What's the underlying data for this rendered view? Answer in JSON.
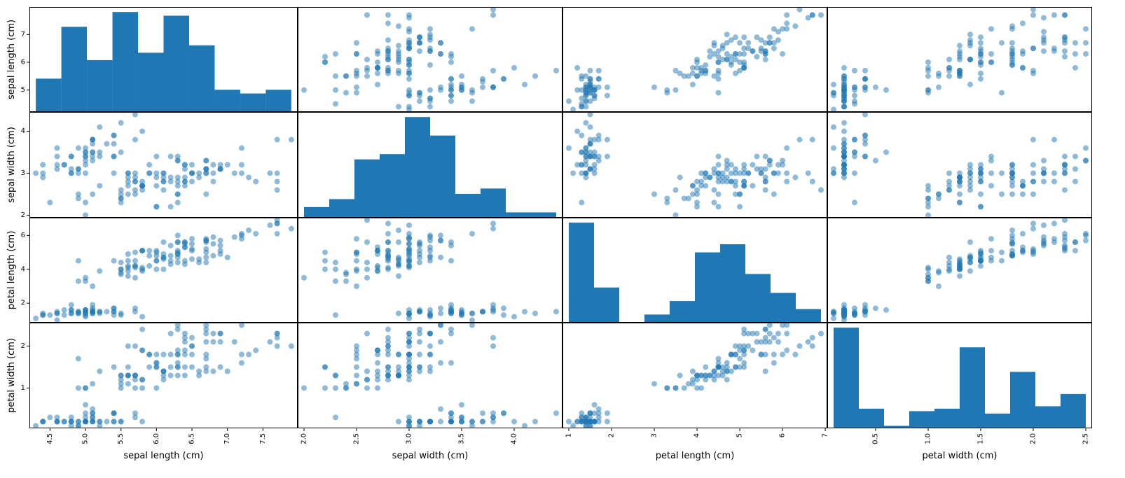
{
  "chart_data": {
    "type": "scatter-matrix",
    "variables": [
      "sepal length (cm)",
      "sepal width (cm)",
      "petal length (cm)",
      "petal width (cm)"
    ],
    "ranges": [
      [
        4.3,
        7.9
      ],
      [
        2.0,
        4.4
      ],
      [
        1.0,
        6.9
      ],
      [
        0.1,
        2.5
      ]
    ],
    "x_ticks": [
      [
        "4.5",
        "5.0",
        "5.5",
        "6.0",
        "6.5",
        "7.0",
        "7.5"
      ],
      [
        "2.0",
        "2.5",
        "3.0",
        "3.5",
        "4.0"
      ],
      [
        "1",
        "2",
        "3",
        "4",
        "5",
        "6",
        "7"
      ],
      [
        "0.5",
        "1.0",
        "1.5",
        "2.0",
        "2.5"
      ]
    ],
    "y_ticks": [
      [
        "5",
        "6",
        "7"
      ],
      [
        "2",
        "3",
        "4"
      ],
      [
        "2",
        "4",
        "6"
      ],
      [
        "1",
        "2"
      ]
    ],
    "histograms": [
      {
        "variable": "sepal length (cm)",
        "counts": [
          9,
          23,
          14,
          27,
          16,
          26,
          18,
          6,
          5,
          6
        ]
      },
      {
        "variable": "sepal width (cm)",
        "counts": [
          4,
          7,
          22,
          24,
          38,
          31,
          9,
          11,
          2,
          2
        ]
      },
      {
        "variable": "petal length (cm)",
        "counts": [
          37,
          13,
          0,
          3,
          8,
          26,
          29,
          18,
          11,
          5
        ]
      },
      {
        "variable": "petal width (cm)",
        "counts": [
          41,
          8,
          1,
          7,
          8,
          33,
          6,
          23,
          9,
          14
        ]
      }
    ],
    "marker_color": "#1f77b4",
    "marker_alpha": 0.5,
    "bar_color": "#1f77b4",
    "samples": [
      [
        5.1,
        3.5,
        1.4,
        0.2
      ],
      [
        4.9,
        3.0,
        1.4,
        0.2
      ],
      [
        4.7,
        3.2,
        1.3,
        0.2
      ],
      [
        4.6,
        3.1,
        1.5,
        0.2
      ],
      [
        5.0,
        3.6,
        1.4,
        0.2
      ],
      [
        5.4,
        3.9,
        1.7,
        0.4
      ],
      [
        4.6,
        3.4,
        1.4,
        0.3
      ],
      [
        5.0,
        3.4,
        1.5,
        0.2
      ],
      [
        4.4,
        2.9,
        1.4,
        0.2
      ],
      [
        4.9,
        3.1,
        1.5,
        0.1
      ],
      [
        5.4,
        3.7,
        1.5,
        0.2
      ],
      [
        4.8,
        3.4,
        1.6,
        0.2
      ],
      [
        4.8,
        3.0,
        1.4,
        0.1
      ],
      [
        4.3,
        3.0,
        1.1,
        0.1
      ],
      [
        5.8,
        4.0,
        1.2,
        0.2
      ],
      [
        5.7,
        4.4,
        1.5,
        0.4
      ],
      [
        5.4,
        3.9,
        1.3,
        0.4
      ],
      [
        5.1,
        3.5,
        1.4,
        0.3
      ],
      [
        5.7,
        3.8,
        1.7,
        0.3
      ],
      [
        5.1,
        3.8,
        1.5,
        0.3
      ],
      [
        5.4,
        3.4,
        1.7,
        0.2
      ],
      [
        5.1,
        3.7,
        1.5,
        0.4
      ],
      [
        4.6,
        3.6,
        1.0,
        0.2
      ],
      [
        5.1,
        3.3,
        1.7,
        0.5
      ],
      [
        4.8,
        3.4,
        1.9,
        0.2
      ],
      [
        5.0,
        3.0,
        1.6,
        0.2
      ],
      [
        5.0,
        3.4,
        1.6,
        0.4
      ],
      [
        5.2,
        3.5,
        1.5,
        0.2
      ],
      [
        5.2,
        3.4,
        1.4,
        0.2
      ],
      [
        4.7,
        3.2,
        1.6,
        0.2
      ],
      [
        4.8,
        3.1,
        1.6,
        0.2
      ],
      [
        5.4,
        3.4,
        1.5,
        0.4
      ],
      [
        5.2,
        4.1,
        1.5,
        0.1
      ],
      [
        5.5,
        4.2,
        1.4,
        0.2
      ],
      [
        4.9,
        3.1,
        1.5,
        0.2
      ],
      [
        5.0,
        3.2,
        1.2,
        0.2
      ],
      [
        5.5,
        3.5,
        1.3,
        0.2
      ],
      [
        4.9,
        3.6,
        1.4,
        0.1
      ],
      [
        4.4,
        3.0,
        1.3,
        0.2
      ],
      [
        5.1,
        3.4,
        1.5,
        0.2
      ],
      [
        5.0,
        3.5,
        1.3,
        0.3
      ],
      [
        4.5,
        2.3,
        1.3,
        0.3
      ],
      [
        4.4,
        3.2,
        1.3,
        0.2
      ],
      [
        5.0,
        3.5,
        1.6,
        0.6
      ],
      [
        5.1,
        3.8,
        1.9,
        0.4
      ],
      [
        4.8,
        3.0,
        1.4,
        0.3
      ],
      [
        5.1,
        3.8,
        1.6,
        0.2
      ],
      [
        4.6,
        3.2,
        1.4,
        0.2
      ],
      [
        5.3,
        3.7,
        1.5,
        0.2
      ],
      [
        5.0,
        3.3,
        1.4,
        0.2
      ],
      [
        7.0,
        3.2,
        4.7,
        1.4
      ],
      [
        6.4,
        3.2,
        4.5,
        1.5
      ],
      [
        6.9,
        3.1,
        4.9,
        1.5
      ],
      [
        5.5,
        2.3,
        4.0,
        1.3
      ],
      [
        6.5,
        2.8,
        4.6,
        1.5
      ],
      [
        5.7,
        2.8,
        4.5,
        1.3
      ],
      [
        6.3,
        3.3,
        4.7,
        1.6
      ],
      [
        4.9,
        2.4,
        3.3,
        1.0
      ],
      [
        6.6,
        2.9,
        4.6,
        1.3
      ],
      [
        5.2,
        2.7,
        3.9,
        1.4
      ],
      [
        5.0,
        2.0,
        3.5,
        1.0
      ],
      [
        5.9,
        3.0,
        4.2,
        1.5
      ],
      [
        6.0,
        2.2,
        4.0,
        1.0
      ],
      [
        6.1,
        2.9,
        4.7,
        1.4
      ],
      [
        5.6,
        2.9,
        3.6,
        1.3
      ],
      [
        6.7,
        3.1,
        4.4,
        1.4
      ],
      [
        5.6,
        3.0,
        4.5,
        1.5
      ],
      [
        5.8,
        2.7,
        4.1,
        1.0
      ],
      [
        6.2,
        2.2,
        4.5,
        1.5
      ],
      [
        5.6,
        2.5,
        3.9,
        1.1
      ],
      [
        5.9,
        3.2,
        4.8,
        1.8
      ],
      [
        6.1,
        2.8,
        4.0,
        1.3
      ],
      [
        6.3,
        2.5,
        4.9,
        1.5
      ],
      [
        6.1,
        2.8,
        4.7,
        1.2
      ],
      [
        6.4,
        2.9,
        4.3,
        1.3
      ],
      [
        6.6,
        3.0,
        4.4,
        1.4
      ],
      [
        6.8,
        2.8,
        4.8,
        1.4
      ],
      [
        6.7,
        3.0,
        5.0,
        1.7
      ],
      [
        6.0,
        2.9,
        4.5,
        1.5
      ],
      [
        5.7,
        2.6,
        3.5,
        1.0
      ],
      [
        5.5,
        2.4,
        3.8,
        1.1
      ],
      [
        5.5,
        2.4,
        3.7,
        1.0
      ],
      [
        5.8,
        2.7,
        3.9,
        1.2
      ],
      [
        6.0,
        2.7,
        5.1,
        1.6
      ],
      [
        5.4,
        3.0,
        4.5,
        1.5
      ],
      [
        6.0,
        3.4,
        4.5,
        1.6
      ],
      [
        6.7,
        3.1,
        4.7,
        1.5
      ],
      [
        6.3,
        2.3,
        4.4,
        1.3
      ],
      [
        5.6,
        3.0,
        4.1,
        1.3
      ],
      [
        5.5,
        2.5,
        4.0,
        1.3
      ],
      [
        5.5,
        2.6,
        4.4,
        1.2
      ],
      [
        6.1,
        3.0,
        4.6,
        1.4
      ],
      [
        5.8,
        2.6,
        4.0,
        1.2
      ],
      [
        5.0,
        2.3,
        3.3,
        1.0
      ],
      [
        5.6,
        2.7,
        4.2,
        1.3
      ],
      [
        5.7,
        3.0,
        4.2,
        1.2
      ],
      [
        5.7,
        2.9,
        4.2,
        1.3
      ],
      [
        6.2,
        2.9,
        4.3,
        1.3
      ],
      [
        5.1,
        2.5,
        3.0,
        1.1
      ],
      [
        5.7,
        2.8,
        4.1,
        1.3
      ],
      [
        6.3,
        3.3,
        6.0,
        2.5
      ],
      [
        5.8,
        2.7,
        5.1,
        1.9
      ],
      [
        7.1,
        3.0,
        5.9,
        2.1
      ],
      [
        6.3,
        2.9,
        5.6,
        1.8
      ],
      [
        6.5,
        3.0,
        5.8,
        2.2
      ],
      [
        7.6,
        3.0,
        6.6,
        2.1
      ],
      [
        4.9,
        2.5,
        4.5,
        1.7
      ],
      [
        7.3,
        2.9,
        6.3,
        1.8
      ],
      [
        6.7,
        2.5,
        5.8,
        1.8
      ],
      [
        7.2,
        3.6,
        6.1,
        2.5
      ],
      [
        6.5,
        3.2,
        5.1,
        2.0
      ],
      [
        6.4,
        2.7,
        5.3,
        1.9
      ],
      [
        6.8,
        3.0,
        5.5,
        2.1
      ],
      [
        5.7,
        2.5,
        5.0,
        2.0
      ],
      [
        5.8,
        2.8,
        5.1,
        2.4
      ],
      [
        6.4,
        3.2,
        5.3,
        2.3
      ],
      [
        6.5,
        3.0,
        5.5,
        1.8
      ],
      [
        7.7,
        3.8,
        6.7,
        2.2
      ],
      [
        7.7,
        2.6,
        6.9,
        2.3
      ],
      [
        6.0,
        2.2,
        5.0,
        1.5
      ],
      [
        6.9,
        3.2,
        5.7,
        2.3
      ],
      [
        5.6,
        2.8,
        4.9,
        2.0
      ],
      [
        7.7,
        2.8,
        6.7,
        2.0
      ],
      [
        6.3,
        2.7,
        4.9,
        1.8
      ],
      [
        6.7,
        3.3,
        5.7,
        2.1
      ],
      [
        7.2,
        3.2,
        6.0,
        1.8
      ],
      [
        6.2,
        2.8,
        4.8,
        1.8
      ],
      [
        6.1,
        3.0,
        4.9,
        1.8
      ],
      [
        6.4,
        2.8,
        5.6,
        2.1
      ],
      [
        7.2,
        3.0,
        5.8,
        1.6
      ],
      [
        7.4,
        2.8,
        6.1,
        1.9
      ],
      [
        7.9,
        3.8,
        6.4,
        2.0
      ],
      [
        6.4,
        2.8,
        5.6,
        2.2
      ],
      [
        6.3,
        2.8,
        5.1,
        1.5
      ],
      [
        6.1,
        2.6,
        5.6,
        1.4
      ],
      [
        7.7,
        3.0,
        6.1,
        2.3
      ],
      [
        6.3,
        3.4,
        5.6,
        2.4
      ],
      [
        6.4,
        3.1,
        5.5,
        1.8
      ],
      [
        6.0,
        3.0,
        4.8,
        1.8
      ],
      [
        6.9,
        3.1,
        5.4,
        2.1
      ],
      [
        6.7,
        3.1,
        5.6,
        2.4
      ],
      [
        6.9,
        3.1,
        5.1,
        2.3
      ],
      [
        5.8,
        2.7,
        5.1,
        1.9
      ],
      [
        6.8,
        3.2,
        5.9,
        2.3
      ],
      [
        6.7,
        3.3,
        5.7,
        2.5
      ],
      [
        6.7,
        3.0,
        5.2,
        2.3
      ],
      [
        6.3,
        2.5,
        5.0,
        1.9
      ],
      [
        6.5,
        3.0,
        5.2,
        2.0
      ],
      [
        6.2,
        3.4,
        5.4,
        2.3
      ],
      [
        5.9,
        3.0,
        5.1,
        1.8
      ]
    ]
  }
}
